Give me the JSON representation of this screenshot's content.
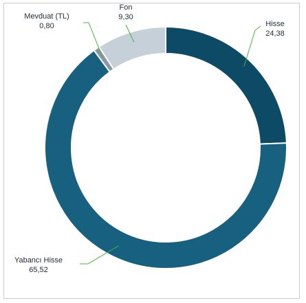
{
  "chart_data": {
    "type": "pie",
    "donut": true,
    "title": "",
    "legend": "none",
    "slices": [
      {
        "label": "Hisse",
        "value": 24.38,
        "value_label": "24,38",
        "color": "#0d4a66"
      },
      {
        "label": "Yabancı Hisse",
        "value": 65.52,
        "value_label": "65,52",
        "color": "#17607f"
      },
      {
        "label": "Mevduat (TL)",
        "value": 0.8,
        "value_label": "0,80",
        "color": "#8a97a2"
      },
      {
        "label": "Fon",
        "value": 9.3,
        "value_label": "9,30",
        "color": "#c6d0d9"
      }
    ]
  }
}
